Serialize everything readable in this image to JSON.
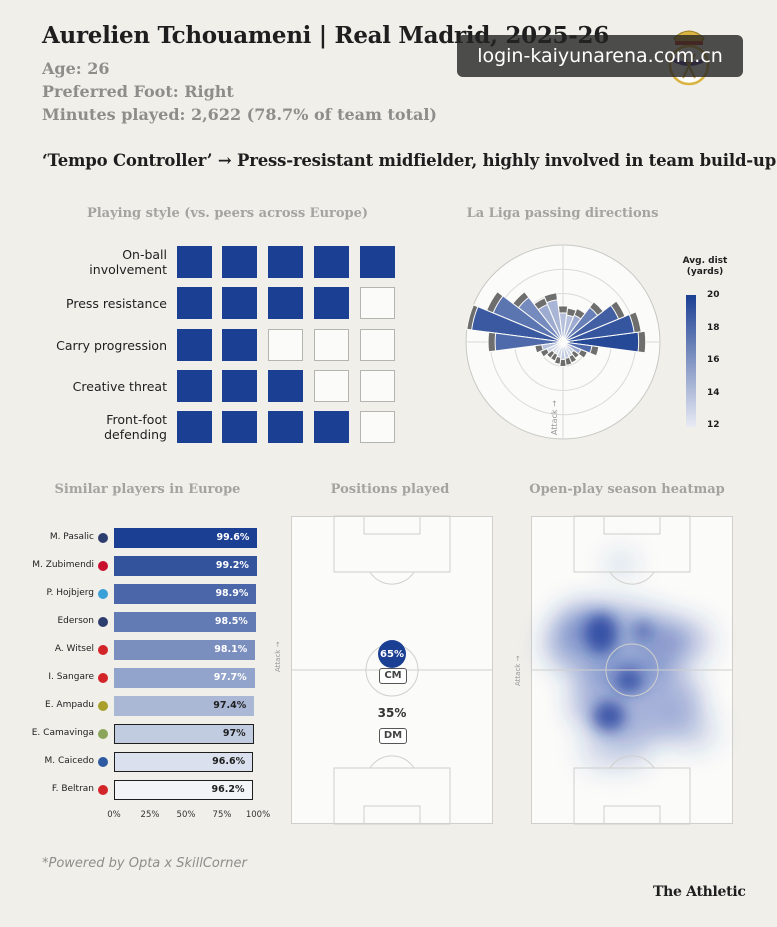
{
  "header": {
    "title": "Aurelien Tchouameni | Real Madrid, 2025-26",
    "age": "Age: 26",
    "foot": "Preferred Foot: Right",
    "minutes": "Minutes played: 2,622 (78.7% of team total)",
    "tagline": "‘Tempo Controller’ → Press-resistant midfielder, highly involved in team build-up"
  },
  "watermark": "login-kaiyunarena.com.cn",
  "crest_icon": "real-madrid-crest-icon",
  "chart_data": [
    {
      "type": "table",
      "title": "Playing style (vs. peers across Europe)",
      "rows": [
        {
          "label": "On-ball\ninvolvement",
          "filled": 5,
          "max": 5
        },
        {
          "label": "Press resistance",
          "filled": 4,
          "max": 5
        },
        {
          "label": "Carry progression",
          "filled": 2,
          "max": 5
        },
        {
          "label": "Creative threat",
          "filled": 3,
          "max": 5
        },
        {
          "label": "Front-foot\ndefending",
          "filled": 4,
          "max": 5
        }
      ],
      "filled_color": "#1b3f92"
    },
    {
      "type": "pie",
      "title": "La Liga passing directions",
      "direction_label": "Attack →",
      "colorbar_title": "Avg. dist\n(yards)",
      "colorbar_ticks": [
        20,
        18,
        16,
        14,
        12
      ],
      "colorbar_range": [
        12,
        20
      ],
      "sectors_start_deg": 0,
      "sector_width_deg": 15,
      "note": "angles measured counterclockwise from attacking direction (right)",
      "frequency": [
        0.78,
        0.74,
        0.62,
        0.45,
        0.3,
        0.28,
        0.3,
        0.44,
        0.42,
        0.58,
        0.78,
        0.95,
        0.7,
        0.22,
        0.18,
        0.14,
        0.14,
        0.16,
        0.18,
        0.17,
        0.16,
        0.14,
        0.2,
        0.3
      ],
      "avg_distance": [
        19.6,
        19.0,
        18.5,
        17.0,
        15.0,
        14.0,
        14.0,
        14.5,
        15.0,
        16.5,
        17.5,
        18.8,
        18.0,
        14.0,
        13.0,
        13.0,
        12.5,
        13.0,
        13.5,
        13.5,
        13.0,
        13.5,
        15.0,
        18.0
      ],
      "background_ring_color": "#6e6e6e"
    },
    {
      "type": "bar",
      "title": "Similar players in Europe",
      "categories": [
        "M. Pasalic",
        "M. Zubimendi",
        "P. Hojbjerg",
        "Ederson",
        "A. Witsel",
        "I. Sangare",
        "E. Ampadu",
        "E. Camavinga",
        "M. Caicedo",
        "F. Beltran"
      ],
      "values": [
        99.6,
        99.2,
        98.9,
        98.5,
        98.1,
        97.7,
        97.4,
        97,
        96.6,
        96.2
      ],
      "value_labels": [
        "99.6%",
        "99.2%",
        "98.9%",
        "98.5%",
        "98.1%",
        "97.7%",
        "97.4%",
        "97%",
        "96.6%",
        "96.2%"
      ],
      "xlim": [
        0,
        100
      ],
      "x_ticks": [
        "0%",
        "25%",
        "50%",
        "75%",
        "100%"
      ],
      "club_badge_colors": [
        "#2d3e6e",
        "#c8102e",
        "#3aa0d8",
        "#2d3e6e",
        "#d3242a",
        "#d3242a",
        "#a8a02a",
        "#8aa55a",
        "#2d5aa0",
        "#d3242a"
      ],
      "color_scale": [
        "#1b3f92",
        "#f2f4f8"
      ]
    }
  ],
  "positions": {
    "title": "Positions played",
    "attack_label": "Attack →",
    "items": [
      {
        "pct": "65%",
        "label": "CM",
        "filled": true
      },
      {
        "pct": "35%",
        "label": "DM",
        "filled": false
      }
    ]
  },
  "heatmap": {
    "title": "Open-play season heatmap",
    "attack_label": "Attack →",
    "color": "#2747a8"
  },
  "footer": {
    "note": "*Powered by Opta x SkillCorner",
    "brand": "The Athletic"
  }
}
